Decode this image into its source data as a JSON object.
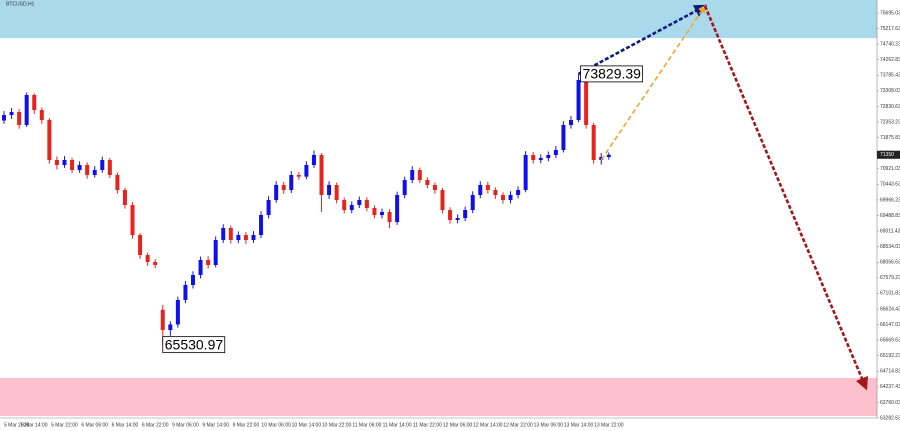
{
  "chart_data": {
    "type": "candlestick",
    "title": "BTCUSD,H1",
    "categories": [
      "5 Mar 2026",
      null,
      null,
      null,
      "5 Mar 14:00",
      null,
      null,
      null,
      "5 Mar 22:00",
      null,
      null,
      null,
      "6 Mar 06:00",
      null,
      null,
      null,
      "6 Mar 14:00",
      null,
      null,
      null,
      "6 Mar 22:00",
      null,
      null,
      null,
      "9 Mar 06:00",
      null,
      null,
      null,
      "9 Mar 14:00",
      null,
      null,
      null,
      "9 Mar 22:00",
      null,
      null,
      null,
      "10 Mar 06:00",
      null,
      null,
      null,
      "10 Mar 14:00",
      null,
      null,
      null,
      "10 Mar 22:00",
      null,
      null,
      null,
      "11 Mar 06:00",
      null,
      null,
      null,
      "11 Mar 14:00",
      null,
      null,
      null,
      "11 Mar 22:00",
      null,
      null,
      null,
      "12 Mar 06:00",
      null,
      null,
      null,
      "12 Mar 14:00",
      null,
      null,
      null,
      "12 Mar 22:00",
      null,
      null,
      null,
      "13 Mar 06:00",
      null,
      null,
      null,
      "13 Mar 14:00",
      null,
      null,
      null,
      "13 Mar 22:00"
    ],
    "open": [
      72400,
      72569,
      72661,
      72263,
      73182,
      72722,
      72416,
      71190,
      71037,
      71190,
      70883,
      71037,
      70730,
      70883,
      71190,
      70730,
      70270,
      69811,
      68891,
      68278,
      68064,
      66600,
      65979,
      66150,
      66899,
      67359,
      67665,
      68125,
      67972,
      68738,
      69106,
      68738,
      68891,
      68738,
      68891,
      69504,
      69964,
      70424,
      70270,
      70730,
      70680,
      71037,
      71343,
      70117,
      70424,
      69964,
      69657,
      69811,
      69964,
      69719,
      69504,
      69596,
      69290,
      70117,
      70577,
      70883,
      70577,
      70424,
      70270,
      69657,
      69351,
      69412,
      69657,
      70117,
      70424,
      70270,
      70117,
      69964,
      70117,
      70270,
      71343,
      71190,
      71250,
      71343,
      71496,
      72263,
      72416,
      73642,
      72263,
      71190,
      71282
    ],
    "high": [
      72690,
      72780,
      72750,
      73260,
      73230,
      72800,
      72480,
      71300,
      71310,
      71260,
      71150,
      71120,
      71000,
      71290,
      71250,
      70800,
      70340,
      69900,
      68950,
      68350,
      68150,
      66750,
      66250,
      67000,
      67480,
      67780,
      68230,
      68240,
      68850,
      69220,
      69180,
      69000,
      68980,
      69010,
      69620,
      70080,
      70540,
      70520,
      70850,
      70820,
      71150,
      71480,
      71400,
      70540,
      70500,
      70040,
      69920,
      70070,
      70050,
      69800,
      69700,
      69680,
      70220,
      70680,
      71000,
      70960,
      70660,
      70500,
      70340,
      69740,
      69520,
      69760,
      70230,
      70540,
      70520,
      70350,
      70200,
      70230,
      70380,
      71460,
      71430,
      71360,
      71450,
      71620,
      72380,
      72540,
      73829.39,
      73700,
      72330,
      71400,
      71420
    ],
    "low": [
      72300,
      72450,
      72150,
      72200,
      72600,
      72300,
      71080,
      70900,
      70950,
      70780,
      70800,
      70620,
      70650,
      70800,
      70640,
      70160,
      69700,
      68780,
      68160,
      67950,
      67870,
      65530.97,
      65800,
      66050,
      66800,
      67250,
      67560,
      67860,
      67900,
      68650,
      68630,
      68640,
      68620,
      68650,
      68800,
      69400,
      69880,
      70150,
      70180,
      70580,
      70600,
      70950,
      69600,
      70000,
      69860,
      69550,
      69560,
      69720,
      69620,
      69400,
      69400,
      69100,
      69200,
      70020,
      70480,
      70480,
      70320,
      70160,
      69550,
      69240,
      69250,
      69320,
      69560,
      70020,
      70160,
      70000,
      69850,
      69860,
      70020,
      70200,
      71080,
      71090,
      71150,
      71250,
      71420,
      72150,
      72350,
      72150,
      71080,
      71050,
      71200
    ],
    "close": [
      72569,
      72661,
      72263,
      73182,
      72722,
      72416,
      71190,
      71037,
      71190,
      70883,
      71037,
      70730,
      70883,
      71190,
      70730,
      70270,
      69811,
      68891,
      68278,
      68064,
      67972,
      65979,
      66150,
      66899,
      67359,
      67665,
      68125,
      67972,
      68738,
      69106,
      68738,
      68891,
      68738,
      68891,
      69504,
      69964,
      70424,
      70270,
      70730,
      70680,
      71037,
      71343,
      70117,
      70424,
      69964,
      69657,
      69811,
      69964,
      69719,
      69504,
      69596,
      69290,
      70117,
      70577,
      70883,
      70577,
      70424,
      70270,
      69657,
      69351,
      69412,
      69657,
      70117,
      70424,
      70270,
      70117,
      69964,
      70117,
      70270,
      71343,
      71190,
      71250,
      71343,
      71496,
      72263,
      72416,
      73642,
      72263,
      71190,
      71282,
      71350
    ],
    "up_color": "#1010ee",
    "down_color": "#e8231f",
    "ylim": [
      63282.63,
      76094
    ],
    "yticks": [
      63282.63,
      63760.03,
      64237.43,
      64714.83,
      65192.23,
      65669.63,
      66147.03,
      66624.43,
      67101.83,
      67579.23,
      68056.63,
      68534.03,
      69011.43,
      69488.83,
      69966.23,
      70443.63,
      70921.03,
      71398.43,
      71875.83,
      72353.23,
      72830.63,
      73308.03,
      73785.43,
      74262.83,
      74740.23,
      75217.63,
      75695.03
    ],
    "zones": [
      {
        "from": 74928,
        "to": 76094,
        "color": "#a9d9ea"
      },
      {
        "from": 63343,
        "to": 64508,
        "color": "#ffc0cd"
      }
    ],
    "annotations": [
      {
        "value": 73829.39,
        "label": "73829.39"
      },
      {
        "value": 65530.97,
        "label": "65530.97"
      }
    ],
    "arrows": [
      {
        "from": 73829.39,
        "to": 75909,
        "color": "#0c1d80"
      },
      {
        "from": 71190,
        "to": 75909,
        "color": "#f5a623"
      },
      {
        "from": 75909,
        "to": 64202,
        "color": "#a3161a"
      }
    ],
    "current_price": 71350
  }
}
